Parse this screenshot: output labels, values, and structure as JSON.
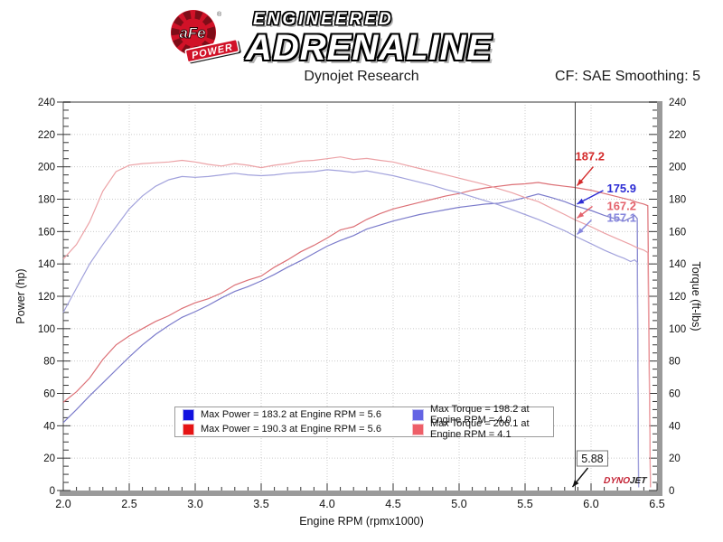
{
  "header": {
    "logo": {
      "circle_text": "aFe",
      "ribbon_text": "POWER",
      "registered": "®"
    },
    "brand_line1": "ENGINEERED",
    "brand_line2": "ADRENALINE",
    "subtitle_left": "Dynojet Research",
    "subtitle_right": "CF: SAE Smoothing: 5"
  },
  "chart_data": {
    "type": "line",
    "title": "",
    "xlabel": "Engine RPM (rpmx1000)",
    "ylabel_left": "Power (hp)",
    "ylabel_right": "Torque (ft-lbs)",
    "xlim": [
      2.0,
      6.5
    ],
    "ylim": [
      0,
      240
    ],
    "x_major_step": 0.5,
    "x_minor_step": 0.1,
    "y_major_step": 20,
    "y_minor_step": 5,
    "grid": "dotted-major",
    "legend_position": "bottom-center",
    "colors": {
      "frame": "#9a9a9a",
      "grid": "#cbcbcb",
      "tick": "#333333",
      "cursor": "#3c3c3c",
      "text": "#111111"
    },
    "cursor": {
      "value": 5.88,
      "label": "5.88"
    },
    "watermark": {
      "part1": "DYNO",
      "part2": "JET",
      "part1_color": "#c32032",
      "part2_color": "#1a1a1a"
    },
    "series": [
      {
        "name": "power-stock",
        "legend": "Max Power = 183.2 at Engine RPM = 5.6",
        "max_value": 183.2,
        "max_rpm": 5.6,
        "cursor_value": 175.9,
        "line_color": "#7b7bcb",
        "swatch_color": "#1212e0",
        "swatch_border": "#b0b0ec",
        "ann_color": "#2b2bd4",
        "x": [
          2.0,
          2.1,
          2.2,
          2.3,
          2.4,
          2.5,
          2.6,
          2.7,
          2.8,
          2.9,
          3.0,
          3.1,
          3.2,
          3.3,
          3.4,
          3.5,
          3.6,
          3.7,
          3.8,
          3.9,
          4.0,
          4.1,
          4.2,
          4.3,
          4.4,
          4.5,
          4.6,
          4.7,
          4.8,
          4.9,
          5.0,
          5.1,
          5.2,
          5.3,
          5.4,
          5.5,
          5.6,
          5.7,
          5.8,
          5.88,
          6.0,
          6.1,
          6.2,
          6.25,
          6.3,
          6.33,
          6.35,
          6.36
        ],
        "values": [
          42,
          50,
          58.5,
          66.5,
          74.5,
          82.5,
          90,
          96.5,
          102,
          107,
          110.5,
          114.5,
          119,
          123,
          126,
          129.5,
          133.5,
          138,
          142,
          146.5,
          151,
          154.5,
          157.5,
          161.5,
          164,
          166.5,
          168.5,
          170.5,
          172,
          173.5,
          175,
          176,
          177,
          177.5,
          179,
          181,
          183.2,
          181,
          178.5,
          175.9,
          173,
          170,
          167.5,
          166.5,
          168.5,
          170,
          168,
          2
        ]
      },
      {
        "name": "power-afe",
        "legend": "Max Power = 190.3 at Engine RPM = 5.6",
        "max_value": 190.3,
        "max_rpm": 5.6,
        "cursor_value": 187.2,
        "line_color": "#dc7076",
        "swatch_color": "#e61414",
        "swatch_border": "#f0b0b0",
        "ann_color": "#d42a2a",
        "x": [
          2.0,
          2.1,
          2.2,
          2.3,
          2.4,
          2.5,
          2.6,
          2.7,
          2.8,
          2.9,
          3.0,
          3.1,
          3.2,
          3.3,
          3.4,
          3.5,
          3.6,
          3.7,
          3.8,
          3.9,
          4.0,
          4.1,
          4.2,
          4.3,
          4.4,
          4.5,
          4.6,
          4.7,
          4.8,
          4.9,
          5.0,
          5.1,
          5.2,
          5.3,
          5.4,
          5.5,
          5.6,
          5.7,
          5.8,
          5.88,
          6.0,
          6.1,
          6.2,
          6.3,
          6.35,
          6.4,
          6.43,
          6.45
        ],
        "values": [
          54.5,
          61,
          69.5,
          81,
          90,
          95.5,
          100,
          104.5,
          108,
          112.5,
          116,
          118.5,
          122,
          127,
          130,
          132.5,
          138,
          142.5,
          147.5,
          151.5,
          156,
          161,
          163,
          167.5,
          171,
          174,
          176,
          178,
          180,
          182,
          183.5,
          185.5,
          187,
          188,
          189,
          189.5,
          190.3,
          189,
          188,
          187.2,
          185.5,
          183.5,
          181.5,
          179.5,
          178,
          177,
          176,
          2
        ]
      },
      {
        "name": "torque-stock",
        "legend": "Max Torque = 198.2 at Engine RPM = 4.0",
        "max_value": 198.2,
        "max_rpm": 4.0,
        "cursor_value": 157.1,
        "line_color": "#a2a2dc",
        "swatch_color": "#6464e4",
        "swatch_border": "#c0c0f0",
        "ann_color": "#8585dc",
        "x": [
          2.0,
          2.1,
          2.2,
          2.3,
          2.4,
          2.5,
          2.6,
          2.7,
          2.8,
          2.9,
          3.0,
          3.1,
          3.2,
          3.3,
          3.4,
          3.5,
          3.6,
          3.7,
          3.8,
          3.9,
          4.0,
          4.1,
          4.2,
          4.3,
          4.4,
          4.5,
          4.6,
          4.7,
          4.8,
          4.9,
          5.0,
          5.1,
          5.2,
          5.3,
          5.4,
          5.5,
          5.6,
          5.7,
          5.8,
          5.88,
          6.0,
          6.1,
          6.2,
          6.25,
          6.3,
          6.33,
          6.35,
          6.36
        ],
        "values": [
          110,
          125,
          140,
          152,
          163,
          174,
          182,
          188,
          192,
          194,
          193.5,
          194,
          195,
          196,
          195,
          194.5,
          195,
          196,
          196.5,
          197,
          198.2,
          197.5,
          196.5,
          197.5,
          196,
          194.5,
          192.5,
          190.5,
          188.5,
          186,
          184,
          181.5,
          179,
          176.5,
          173.5,
          170.5,
          167.5,
          164,
          160.5,
          157.1,
          152.5,
          148.5,
          145,
          143.5,
          141.5,
          142.5,
          141,
          2
        ]
      },
      {
        "name": "torque-afe",
        "legend": "Max Torque = 206.1 at Engine RPM = 4.1",
        "max_value": 206.1,
        "max_rpm": 4.1,
        "cursor_value": 167.2,
        "line_color": "#eca2a6",
        "swatch_color": "#ee5f68",
        "swatch_border": "#f6c0c4",
        "ann_color": "#e4626c",
        "x": [
          2.0,
          2.1,
          2.2,
          2.3,
          2.4,
          2.5,
          2.6,
          2.7,
          2.8,
          2.9,
          3.0,
          3.1,
          3.2,
          3.3,
          3.4,
          3.5,
          3.6,
          3.7,
          3.8,
          3.9,
          4.0,
          4.1,
          4.2,
          4.3,
          4.4,
          4.5,
          4.6,
          4.7,
          4.8,
          4.9,
          5.0,
          5.1,
          5.2,
          5.3,
          5.4,
          5.5,
          5.6,
          5.7,
          5.8,
          5.88,
          6.0,
          6.1,
          6.2,
          6.3,
          6.35,
          6.4,
          6.43,
          6.45
        ],
        "values": [
          143,
          152,
          166,
          185,
          197,
          201,
          202,
          202.5,
          203,
          204,
          203,
          201.5,
          200.5,
          202,
          201,
          199.5,
          201,
          202,
          203.5,
          204,
          205,
          206.1,
          204.5,
          205.2,
          204,
          203,
          201,
          199,
          197,
          195,
          193,
          191,
          189,
          186.5,
          184,
          181,
          178.5,
          174.5,
          170.5,
          167.2,
          163,
          159,
          155.5,
          152,
          150,
          148.5,
          147,
          2
        ]
      }
    ],
    "annotations": [
      {
        "series": "power-afe",
        "label": "187.2"
      },
      {
        "series": "power-stock",
        "label": "175.9"
      },
      {
        "series": "torque-afe",
        "label": "167.2"
      },
      {
        "series": "torque-stock",
        "label": "157.1"
      }
    ]
  }
}
